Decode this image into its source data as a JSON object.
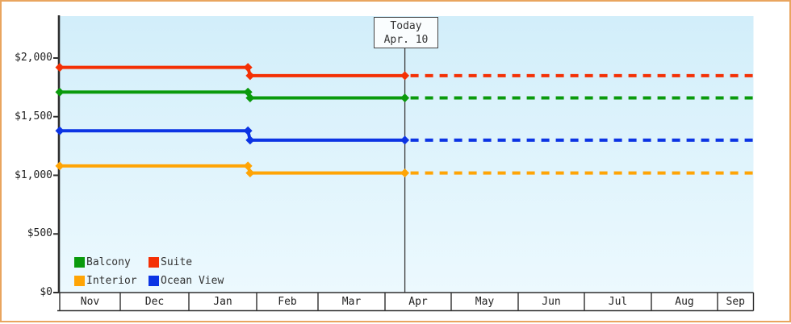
{
  "frame": {
    "border_color": "#e9a55f",
    "background": "#ffffff"
  },
  "chart_data": {
    "type": "line",
    "title": "",
    "description": "Cabin price history by category with forecast after today",
    "grid": false,
    "legend_position": "bottom-left",
    "x_axis": {
      "months": [
        "Nov",
        "Dec",
        "Jan",
        "Feb",
        "Mar",
        "Apr",
        "May",
        "Jun",
        "Jul",
        "Aug",
        "Sep"
      ]
    },
    "y_axis": {
      "tick_values": [
        0,
        500,
        1000,
        1500,
        2000
      ],
      "tick_labels": [
        "$0",
        "$500",
        "$1,000",
        "$1,500",
        "$2,000"
      ],
      "ylim": [
        0,
        2360
      ],
      "unit": "USD"
    },
    "today_marker": {
      "line1": "Today",
      "line2": "Apr. 10",
      "month": "Apr",
      "day": 10
    },
    "plot_bg_top": "#d2eefa",
    "plot_bg_bottom": "#ecf9fe",
    "legend": [
      {
        "name": "Balcony",
        "color": "#0a9a0c"
      },
      {
        "name": "Suite",
        "color": "#f43005"
      },
      {
        "name": "Interior",
        "color": "#ffa405"
      },
      {
        "name": "Ocean View",
        "color": "#0c34e4"
      }
    ],
    "series": [
      {
        "name": "Suite",
        "color": "#f43005",
        "points": [
          {
            "month": "Nov",
            "day": 1,
            "value": 1920
          },
          {
            "month": "Jan",
            "day": 28,
            "value": 1920
          },
          {
            "month": "Jan",
            "day": 29,
            "value": 1850
          },
          {
            "month": "Apr",
            "day": 10,
            "value": 1850
          }
        ],
        "forecast_value": 1850
      },
      {
        "name": "Balcony",
        "color": "#0a9a0c",
        "points": [
          {
            "month": "Nov",
            "day": 1,
            "value": 1710
          },
          {
            "month": "Jan",
            "day": 28,
            "value": 1710
          },
          {
            "month": "Jan",
            "day": 29,
            "value": 1660
          },
          {
            "month": "Apr",
            "day": 10,
            "value": 1660
          }
        ],
        "forecast_value": 1660
      },
      {
        "name": "Ocean View",
        "color": "#0c34e4",
        "points": [
          {
            "month": "Nov",
            "day": 1,
            "value": 1380
          },
          {
            "month": "Jan",
            "day": 28,
            "value": 1380
          },
          {
            "month": "Jan",
            "day": 29,
            "value": 1300
          },
          {
            "month": "Apr",
            "day": 10,
            "value": 1300
          }
        ],
        "forecast_value": 1300
      },
      {
        "name": "Interior",
        "color": "#ffa405",
        "points": [
          {
            "month": "Nov",
            "day": 1,
            "value": 1080
          },
          {
            "month": "Jan",
            "day": 28,
            "value": 1080
          },
          {
            "month": "Jan",
            "day": 29,
            "value": 1020
          },
          {
            "month": "Apr",
            "day": 10,
            "value": 1020
          }
        ],
        "forecast_value": 1020
      }
    ]
  }
}
